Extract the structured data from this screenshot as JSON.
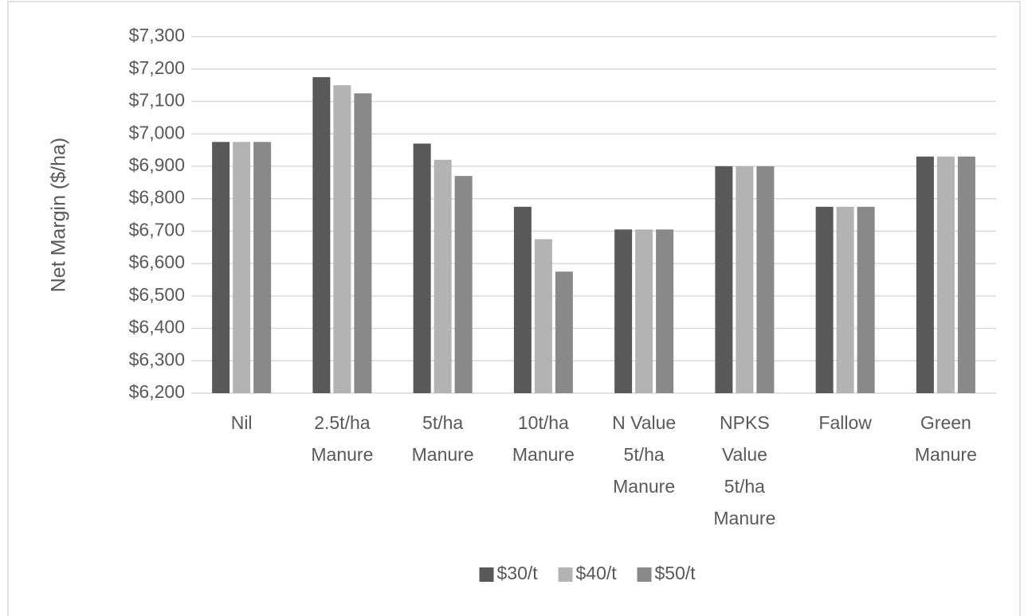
{
  "chart_data": {
    "type": "bar",
    "y_label": "Net Margin ($/ha)",
    "categories": [
      [
        "Nil"
      ],
      [
        "2.5t/ha",
        "Manure"
      ],
      [
        "5t/ha",
        "Manure"
      ],
      [
        "10t/ha",
        "Manure"
      ],
      [
        "N Value",
        "5t/ha",
        "Manure"
      ],
      [
        "NPKS",
        "Value",
        "5t/ha",
        "Manure"
      ],
      [
        "Fallow"
      ],
      [
        "Green",
        "Manure"
      ]
    ],
    "series": [
      {
        "name": "$30/t",
        "color": "#595959",
        "values": [
          6975,
          7175,
          6970,
          6775,
          6705,
          6900,
          6775,
          6930
        ]
      },
      {
        "name": "$40/t",
        "color": "#b3b3b3",
        "values": [
          6975,
          7150,
          6920,
          6675,
          6705,
          6900,
          6775,
          6930
        ]
      },
      {
        "name": "$50/t",
        "color": "#898989",
        "values": [
          6975,
          7125,
          6870,
          6575,
          6705,
          6900,
          6775,
          6930
        ]
      }
    ],
    "ylim": [
      6200,
      7300
    ],
    "yticks": [
      {
        "value": 6200,
        "label": "$6,200"
      },
      {
        "value": 6300,
        "label": "$6,300"
      },
      {
        "value": 6400,
        "label": "$6,400"
      },
      {
        "value": 6500,
        "label": "$6,500"
      },
      {
        "value": 6600,
        "label": "$6,600"
      },
      {
        "value": 6700,
        "label": "$6,700"
      },
      {
        "value": 6800,
        "label": "$6,800"
      },
      {
        "value": 6900,
        "label": "$6,900"
      },
      {
        "value": 7000,
        "label": "$7,000"
      },
      {
        "value": 7100,
        "label": "$7,100"
      },
      {
        "value": 7200,
        "label": "$7,200"
      },
      {
        "value": 7300,
        "label": "$7,300"
      }
    ],
    "grid": true,
    "legend": "bottom"
  }
}
